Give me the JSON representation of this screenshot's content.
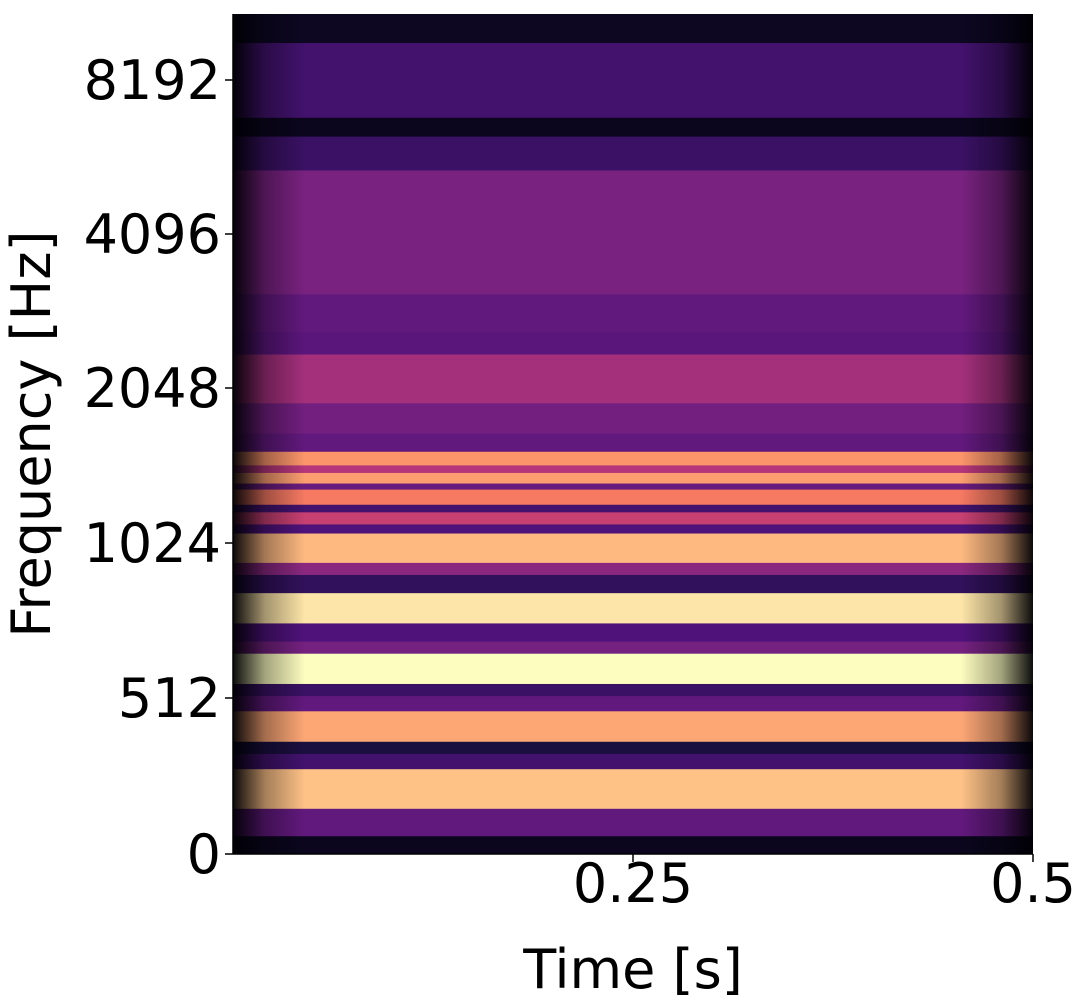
{
  "chart_data": {
    "type": "heatmap",
    "title": "",
    "xlabel": "Time [s]",
    "ylabel": "Frequency [Hz]",
    "xlim": [
      0,
      0.5
    ],
    "ylim_hz": [
      0,
      11025
    ],
    "y_scale": "log2 (mel-like)",
    "colormap": "magma",
    "grid": false,
    "x_ticks": [
      {
        "value": 0.25,
        "label": "0.25"
      },
      {
        "value": 0.5,
        "label": "0.5"
      }
    ],
    "y_ticks": [
      {
        "value": 0,
        "label": "0"
      },
      {
        "value": 512,
        "label": "512"
      },
      {
        "value": 1024,
        "label": "1024"
      },
      {
        "value": 2048,
        "label": "2048"
      },
      {
        "value": 4096,
        "label": "4096"
      },
      {
        "value": 8192,
        "label": "8192"
      }
    ],
    "frequency_bands": [
      {
        "hz_low": 0,
        "hz_high": 60,
        "intensity": 0.05
      },
      {
        "hz_low": 60,
        "hz_high": 150,
        "intensity": 0.3
      },
      {
        "hz_low": 150,
        "hz_high": 280,
        "intensity": 0.88
      },
      {
        "hz_low": 280,
        "hz_high": 330,
        "intensity": 0.22
      },
      {
        "hz_low": 330,
        "hz_high": 370,
        "intensity": 0.12
      },
      {
        "hz_low": 370,
        "hz_high": 470,
        "intensity": 0.82
      },
      {
        "hz_low": 470,
        "hz_high": 520,
        "intensity": 0.3
      },
      {
        "hz_low": 520,
        "hz_high": 560,
        "intensity": 0.2
      },
      {
        "hz_low": 560,
        "hz_high": 660,
        "intensity": 1.0
      },
      {
        "hz_low": 660,
        "hz_high": 700,
        "intensity": 0.35
      },
      {
        "hz_low": 700,
        "hz_high": 760,
        "intensity": 0.25
      },
      {
        "hz_low": 760,
        "hz_high": 860,
        "intensity": 0.95
      },
      {
        "hz_low": 860,
        "hz_high": 920,
        "intensity": 0.18
      },
      {
        "hz_low": 920,
        "hz_high": 960,
        "intensity": 0.4
      },
      {
        "hz_low": 960,
        "hz_high": 1090,
        "intensity": 0.86
      },
      {
        "hz_low": 1090,
        "hz_high": 1150,
        "intensity": 0.25
      },
      {
        "hz_low": 1150,
        "hz_high": 1230,
        "intensity": 0.55
      },
      {
        "hz_low": 1230,
        "hz_high": 1280,
        "intensity": 0.22
      },
      {
        "hz_low": 1280,
        "hz_high": 1380,
        "intensity": 0.72
      },
      {
        "hz_low": 1380,
        "hz_high": 1420,
        "intensity": 0.32
      },
      {
        "hz_low": 1420,
        "hz_high": 1490,
        "intensity": 0.8
      },
      {
        "hz_low": 1490,
        "hz_high": 1540,
        "intensity": 0.5
      },
      {
        "hz_low": 1540,
        "hz_high": 1630,
        "intensity": 0.78
      },
      {
        "hz_low": 1630,
        "hz_high": 1750,
        "intensity": 0.3
      },
      {
        "hz_low": 1750,
        "hz_high": 1950,
        "intensity": 0.34
      },
      {
        "hz_low": 1950,
        "hz_high": 2500,
        "intensity": 0.46
      },
      {
        "hz_low": 2500,
        "hz_high": 2800,
        "intensity": 0.28
      },
      {
        "hz_low": 2800,
        "hz_high": 3300,
        "intensity": 0.3
      },
      {
        "hz_low": 3300,
        "hz_high": 5800,
        "intensity": 0.36
      },
      {
        "hz_low": 5800,
        "hz_high": 6700,
        "intensity": 0.2
      },
      {
        "hz_low": 6700,
        "hz_high": 7200,
        "intensity": 0.05
      },
      {
        "hz_low": 7200,
        "hz_high": 9800,
        "intensity": 0.22
      },
      {
        "hz_low": 9800,
        "hz_high": 11025,
        "intensity": 0.06
      }
    ]
  }
}
